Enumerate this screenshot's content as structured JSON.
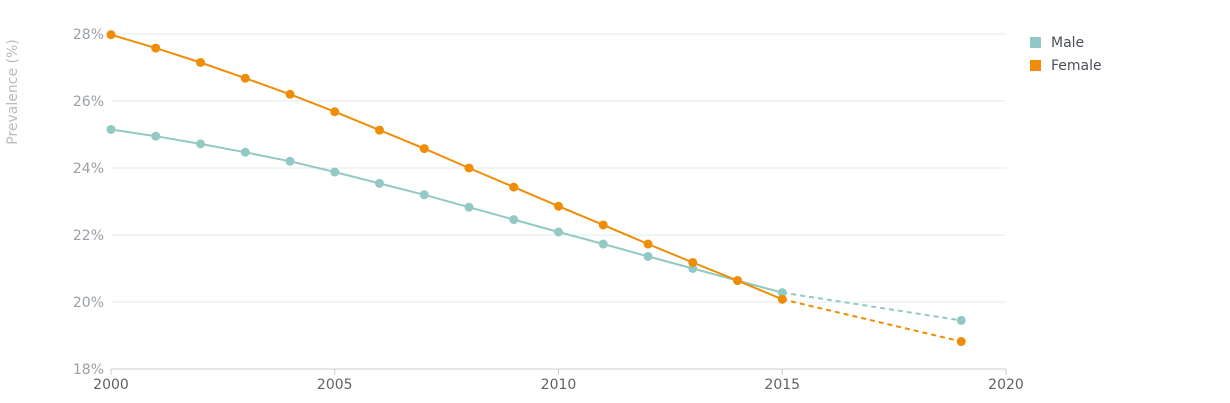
{
  "chart_data": {
    "type": "line",
    "xlabel": "",
    "ylabel": "Prevalence (%)",
    "xlim": [
      2000,
      2020
    ],
    "ylim": [
      18,
      28
    ],
    "x_ticks": [
      2000,
      2005,
      2010,
      2015,
      2020
    ],
    "y_ticks": [
      18,
      20,
      22,
      24,
      26,
      28
    ],
    "y_tick_labels": [
      "18%",
      "20%",
      "22%",
      "24%",
      "26%",
      "28%"
    ],
    "x_tick_labels": [
      "2000",
      "2005",
      "2010",
      "2015",
      "2020"
    ],
    "grid": "horizontal",
    "legend": "top-right",
    "series": [
      {
        "name": "Male",
        "color": "#93c9c5",
        "x": [
          2000,
          2001,
          2002,
          2003,
          2004,
          2005,
          2006,
          2007,
          2008,
          2009,
          2010,
          2011,
          2012,
          2013,
          2014,
          2015
        ],
        "values": [
          25.15,
          24.95,
          24.72,
          24.47,
          24.2,
          23.88,
          23.54,
          23.2,
          22.83,
          22.46,
          22.09,
          21.73,
          21.36,
          21.0,
          20.64,
          20.28
        ],
        "projected_x": [
          2015,
          2019
        ],
        "projected_values": [
          20.28,
          19.45
        ]
      },
      {
        "name": "Female",
        "color": "#ef8d07",
        "x": [
          2000,
          2001,
          2002,
          2003,
          2004,
          2005,
          2006,
          2007,
          2008,
          2009,
          2010,
          2011,
          2012,
          2013,
          2014,
          2015
        ],
        "values": [
          27.98,
          27.58,
          27.15,
          26.68,
          26.2,
          25.68,
          25.13,
          24.58,
          24.0,
          23.43,
          22.86,
          22.3,
          21.73,
          21.18,
          20.64,
          20.08
        ],
        "projected_x": [
          2015,
          2019
        ],
        "projected_values": [
          20.08,
          18.82
        ]
      }
    ]
  }
}
